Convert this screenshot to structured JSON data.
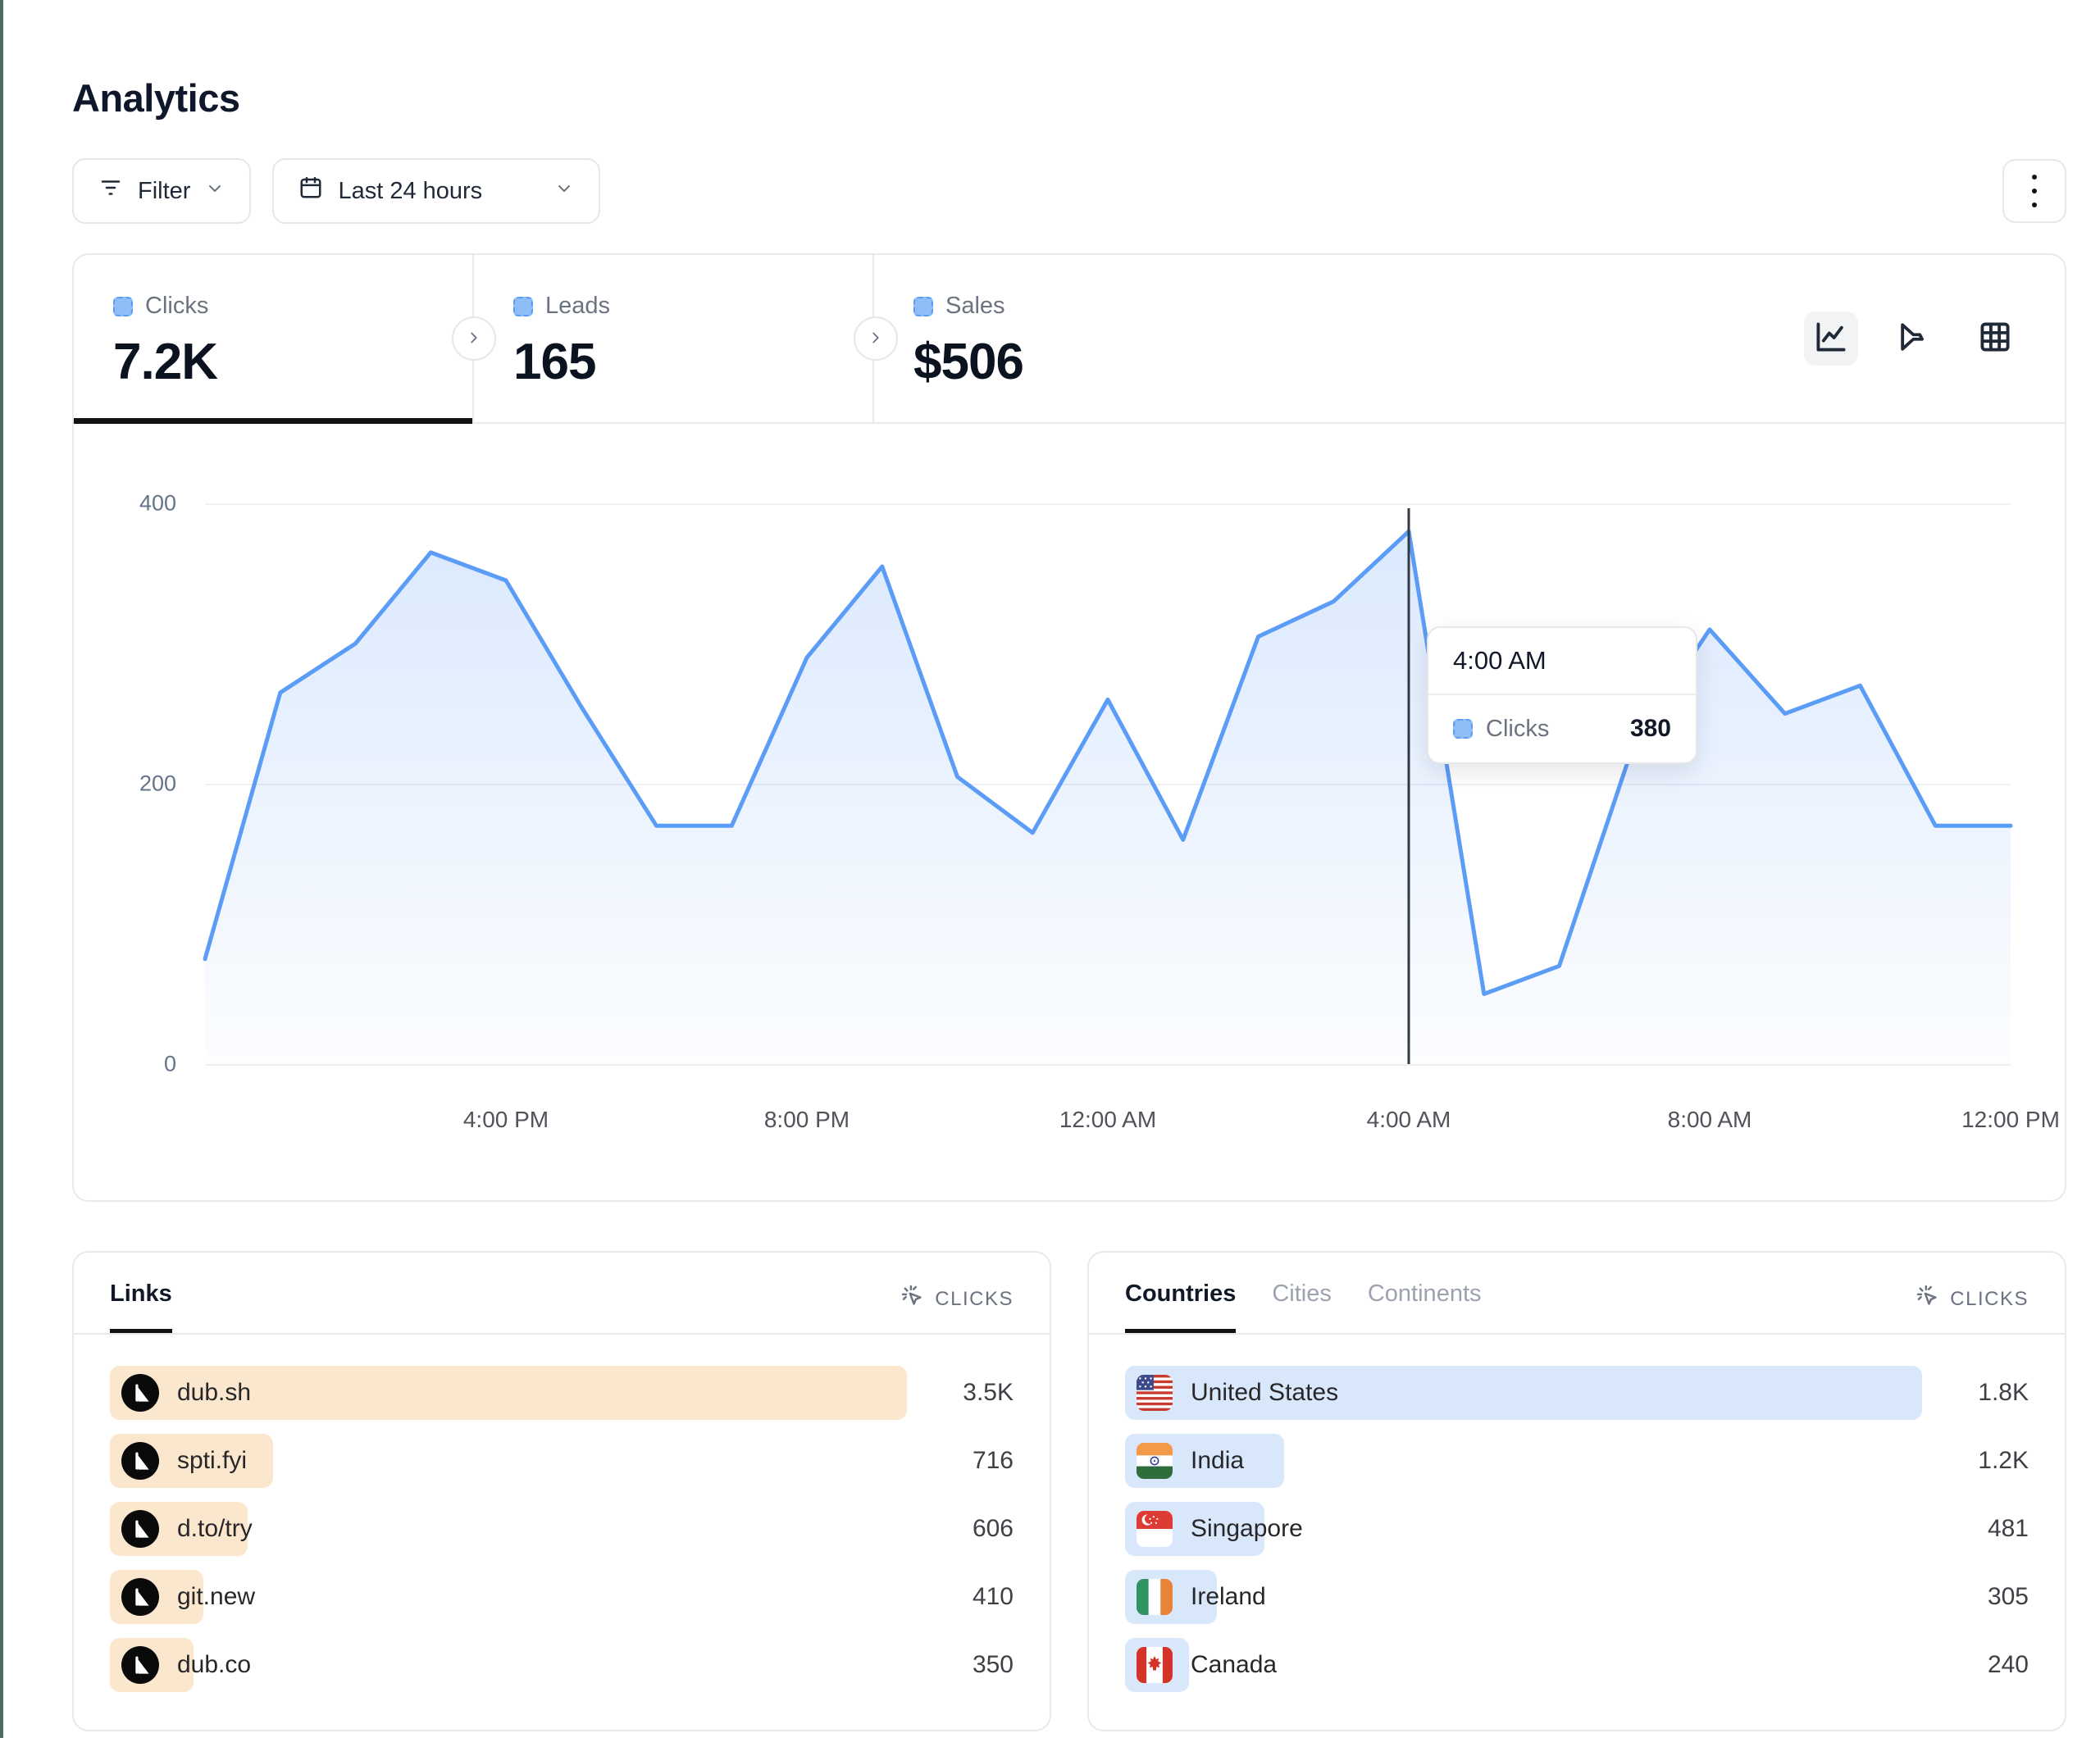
{
  "page": {
    "title": "Analytics"
  },
  "toolbar": {
    "filter": "Filter",
    "date_range": "Last 24 hours"
  },
  "stats": {
    "clicks": {
      "label": "Clicks",
      "value": "7.2K"
    },
    "leads": {
      "label": "Leads",
      "value": "165"
    },
    "sales": {
      "label": "Sales",
      "value": "$506"
    }
  },
  "chart_data": {
    "type": "area",
    "series_name": "Clicks",
    "x": [
      "12:00 PM",
      "1:00 PM",
      "2:00 PM",
      "3:00 PM",
      "4:00 PM",
      "5:00 PM",
      "6:00 PM",
      "7:00 PM",
      "8:00 PM",
      "9:00 PM",
      "10:00 PM",
      "11:00 PM",
      "12:00 AM",
      "1:00 AM",
      "2:00 AM",
      "3:00 AM",
      "4:00 AM",
      "5:00 AM",
      "6:00 AM",
      "7:00 AM",
      "8:00 AM",
      "9:00 AM",
      "10:00 AM",
      "11:00 AM",
      "12:00 PM"
    ],
    "values": [
      75,
      265,
      300,
      365,
      345,
      255,
      170,
      170,
      290,
      355,
      205,
      165,
      260,
      160,
      305,
      330,
      380,
      50,
      70,
      230,
      310,
      250,
      270,
      170,
      170
    ],
    "ylim": [
      0,
      400
    ],
    "yticks": [
      "400",
      "200",
      "0"
    ],
    "xticks": [
      {
        "index": 4,
        "label": "4:00 PM"
      },
      {
        "index": 8,
        "label": "8:00 PM"
      },
      {
        "index": 12,
        "label": "12:00 AM"
      },
      {
        "index": 16,
        "label": "4:00 AM"
      },
      {
        "index": 20,
        "label": "8:00 AM"
      },
      {
        "index": 24,
        "label": "12:00 PM"
      }
    ],
    "grid": "horizontal",
    "legend_position": "none",
    "highlight": {
      "index": 16,
      "time": "4:00 AM",
      "series": "Clicks",
      "value": "380"
    }
  },
  "chart_modes": {
    "active": "line-chart",
    "modes": [
      "line-chart",
      "funnel",
      "table"
    ]
  },
  "links_panel": {
    "tab": "Links",
    "metric": "CLICKS",
    "rows": [
      {
        "label": "dub.sh",
        "value": "3.5K",
        "bar_pct": 100
      },
      {
        "label": "spti.fyi",
        "value": "716",
        "bar_pct": 20.5
      },
      {
        "label": "d.to/try",
        "value": "606",
        "bar_pct": 17.3
      },
      {
        "label": "git.new",
        "value": "410",
        "bar_pct": 11.7
      },
      {
        "label": "dub.co",
        "value": "350",
        "bar_pct": 10.5
      }
    ]
  },
  "countries_panel": {
    "tabs": [
      {
        "label": "Countries",
        "active": true
      },
      {
        "label": "Cities",
        "active": false
      },
      {
        "label": "Continents",
        "active": false
      }
    ],
    "metric": "CLICKS",
    "rows": [
      {
        "label": "United States",
        "value": "1.8K",
        "bar_pct": 100,
        "flag": "us"
      },
      {
        "label": "India",
        "value": "1.2K",
        "bar_pct": 20,
        "flag": "in"
      },
      {
        "label": "Singapore",
        "value": "481",
        "bar_pct": 17.5,
        "flag": "sg"
      },
      {
        "label": "Ireland",
        "value": "305",
        "bar_pct": 11.5,
        "flag": "ie"
      },
      {
        "label": "Canada",
        "value": "240",
        "bar_pct": 8,
        "flag": "ca"
      }
    ]
  },
  "colors": {
    "line_blue": "#5b9cf6",
    "area_blue": "rgba(91,156,246,0.20)",
    "legend_square_fill": "#8fbdf7",
    "links_bar": "#fbe7cd",
    "countries_bar": "#d9e7fb",
    "crosshair": "#333a45"
  }
}
